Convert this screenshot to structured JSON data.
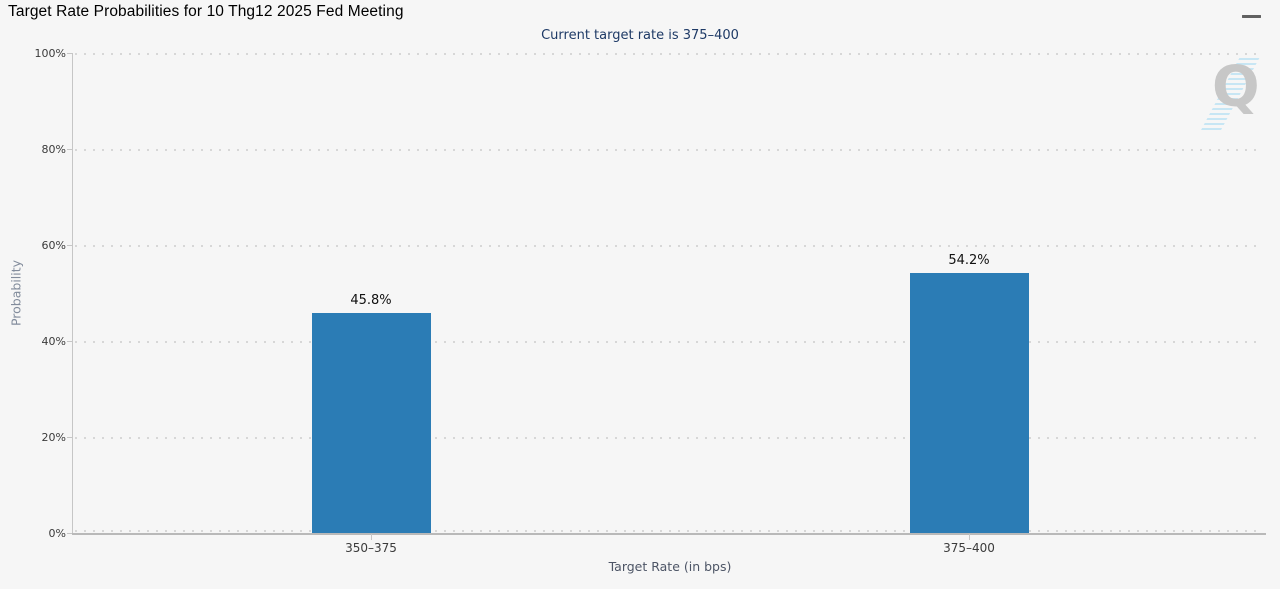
{
  "header": {
    "title": "Target Rate Probabilities for 10 Thg12 2025 Fed Meeting",
    "menu_icon": "hamburger"
  },
  "watermark_letter": "Q",
  "colors": {
    "background": "#f6f6f6",
    "bar": "#2b7cb5",
    "subtitle_text": "#1e3a66",
    "gridline": "#d7d7d7",
    "watermark_stripes": "#c7e6f4",
    "watermark_letter": "#c7c7c7"
  },
  "chart_data": {
    "type": "bar",
    "title": "Target Rate Probabilities for 10 Thg12 2025 Fed Meeting",
    "subtitle": "Current target rate is 375–400",
    "categories": [
      "350–375",
      "375–400"
    ],
    "values": [
      45.8,
      54.2
    ],
    "value_labels": [
      "45.8%",
      "54.2%"
    ],
    "xlabel": "Target Rate (in bps)",
    "ylabel": "Probability",
    "ylim": [
      0,
      100
    ],
    "ytick_interval": 20,
    "ytick_labels": [
      "0%",
      "20%",
      "40%",
      "60%",
      "80%",
      "100%"
    ],
    "grid": "dotted-horizontal",
    "legend": "none",
    "bar_color": "#2b7cb5"
  }
}
